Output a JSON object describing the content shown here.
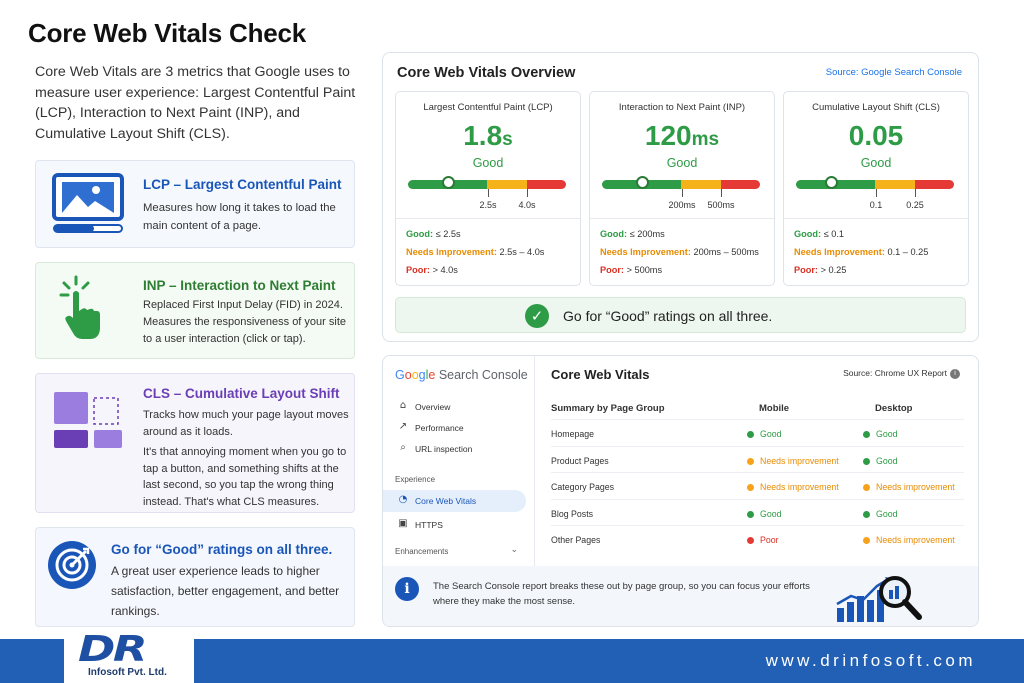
{
  "title": "Core Web Vitals Check",
  "intro": "Core Web Vitals are 3 metrics that Google uses to measure user experience: Largest Contentful Paint (LCP), Interaction to Next Paint (INP), and Cumulative Layout Shift (CLS).",
  "cards": {
    "lcp": {
      "heading": "LCP – Largest Contentful Paint",
      "text": "Measures how long it takes to load the main content of a page.",
      "icon": "image-loading-icon"
    },
    "inp": {
      "heading": "INP – Interaction to Next Paint",
      "text": "Replaced First Input Delay (FID) in 2024. Measures the responsiveness of your site to a user interaction (click or tap).",
      "icon": "tap-hand-icon"
    },
    "cls": {
      "heading": "CLS – Cumulative Layout Shift",
      "text1": "Tracks how much your page layout moves around as it loads.",
      "text2": "It's that annoying moment when you go to tap a button, and something shifts at the last second, so you tap the wrong thing instead. That's what CLS measures.",
      "icon": "layout-shift-icon"
    },
    "good": {
      "heading": "Go for “Good” ratings on all three.",
      "text": "A great user experience leads to higher satisfaction, better engagement, and better rankings.",
      "icon": "target-icon"
    }
  },
  "overview": {
    "title": "Core Web Vitals Overview",
    "source": "Source: Google Search Console",
    "metrics": [
      {
        "name": "Largest Contentful Paint (LCP)",
        "value": "1.8",
        "unit": "s",
        "rating": "Good",
        "tick1": "2.5s",
        "tick2": "4.0s",
        "marker_fraction": 0.25,
        "good": "≤ 2.5s",
        "ni": "2.5s – 4.0s",
        "poor": "> 4.0s"
      },
      {
        "name": "Interaction to Next Paint (INP)",
        "value": "120",
        "unit": "ms",
        "rating": "Good",
        "tick1": "200ms",
        "tick2": "500ms",
        "marker_fraction": 0.25,
        "good": "≤ 200ms",
        "ni": "200ms – 500ms",
        "poor": "> 500ms"
      },
      {
        "name": "Cumulative Layout Shift (CLS)",
        "value": "0.05",
        "unit": "",
        "rating": "Good",
        "tick1": "0.1",
        "tick2": "0.25",
        "marker_fraction": 0.22,
        "good": "≤ 0.1",
        "ni": "0.1 – 0.25",
        "poor": "> 0.25"
      }
    ],
    "labels": {
      "good": "Good:",
      "ni": "Needs Improvement:",
      "poor": "Poor:"
    },
    "banner": "Go for “Good” ratings on all three."
  },
  "console": {
    "logo_google": "Google",
    "logo_sc": "Search Console",
    "nav": [
      {
        "label": "Overview",
        "icon": "home-icon"
      },
      {
        "label": "Performance",
        "icon": "trend-icon"
      },
      {
        "label": "URL inspection",
        "icon": "search-icon"
      }
    ],
    "section_experience": "Experience",
    "nav_experience": [
      {
        "label": "Core Web Vitals",
        "icon": "gauge-icon"
      },
      {
        "label": "HTTPS",
        "icon": "lock-icon"
      }
    ],
    "section_enhancements": "Enhancements",
    "content_title": "Core Web Vitals",
    "content_source": "Source: Chrome UX Report",
    "table": {
      "headers": [
        "Summary by Page Group",
        "Mobile",
        "Desktop"
      ],
      "rows": [
        {
          "group": "Homepage",
          "mobile": "Good",
          "mobile_status": "good",
          "desktop": "Good",
          "desktop_status": "good"
        },
        {
          "group": "Product Pages",
          "mobile": "Needs improvement",
          "mobile_status": "ni",
          "desktop": "Good",
          "desktop_status": "good"
        },
        {
          "group": "Category Pages",
          "mobile": "Needs improvement",
          "mobile_status": "ni",
          "desktop": "Needs improvement",
          "desktop_status": "ni"
        },
        {
          "group": "Blog Posts",
          "mobile": "Good",
          "mobile_status": "good",
          "desktop": "Good",
          "desktop_status": "good"
        },
        {
          "group": "Other Pages",
          "mobile": "Poor",
          "mobile_status": "poor",
          "desktop": "Needs improvement",
          "desktop_status": "ni"
        }
      ]
    },
    "note": "The Search Console report breaks these out by page group, so you can focus your efforts where they make the most sense."
  },
  "footer": {
    "logo_letters": "DR",
    "company": "Infosoft Pvt. Ltd.",
    "url": "www.drinfosoft.com"
  },
  "colors": {
    "good": "#2e9b46",
    "ni": "#f6b21b",
    "poor": "#e53935",
    "brand": "#2160b4"
  }
}
